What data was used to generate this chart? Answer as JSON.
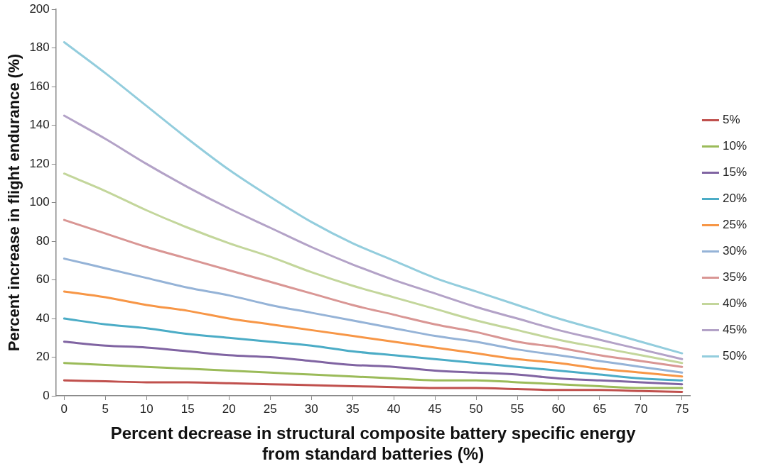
{
  "chart_data": {
    "type": "line",
    "xlabel": "Percent decrease in structural composite battery specific energy from standard batteries (%)",
    "ylabel": "Percent increase in flight endurance (%)",
    "x": [
      0,
      5,
      10,
      15,
      20,
      25,
      30,
      35,
      40,
      45,
      50,
      55,
      60,
      65,
      70,
      75
    ],
    "series": [
      {
        "name": "5%",
        "color": "#c0504d",
        "values": [
          8,
          7.5,
          7,
          7,
          6.5,
          6,
          5.5,
          5,
          4.5,
          4,
          4,
          3.5,
          3,
          3,
          2.5,
          2
        ]
      },
      {
        "name": "10%",
        "color": "#9bbb59",
        "values": [
          17,
          16,
          15,
          14,
          13,
          12,
          11,
          10,
          9,
          8,
          8,
          7,
          6,
          5,
          4,
          4
        ]
      },
      {
        "name": "15%",
        "color": "#8064a2",
        "values": [
          28,
          26,
          25,
          23,
          21,
          20,
          18,
          16,
          15,
          13,
          12,
          11,
          9,
          8,
          7,
          6
        ]
      },
      {
        "name": "20%",
        "color": "#4bacc6",
        "values": [
          40,
          37,
          35,
          32,
          30,
          28,
          26,
          23,
          21,
          19,
          17,
          15,
          13,
          11,
          9,
          8
        ]
      },
      {
        "name": "25%",
        "color": "#f79646",
        "values": [
          54,
          51,
          47,
          44,
          40,
          37,
          34,
          31,
          28,
          25,
          22,
          19,
          17,
          14,
          12,
          10
        ]
      },
      {
        "name": "30%",
        "color": "#95b3d7",
        "values": [
          71,
          66,
          61,
          56,
          52,
          47,
          43,
          39,
          35,
          31,
          28,
          24,
          21,
          18,
          15,
          12
        ]
      },
      {
        "name": "35%",
        "color": "#d99694",
        "values": [
          91,
          84,
          77,
          71,
          65,
          59,
          53,
          47,
          42,
          37,
          33,
          28,
          25,
          21,
          18,
          15
        ]
      },
      {
        "name": "40%",
        "color": "#c3d69b",
        "values": [
          115,
          106,
          96,
          87,
          79,
          72,
          64,
          57,
          51,
          45,
          39,
          34,
          29,
          25,
          21,
          17
        ]
      },
      {
        "name": "45%",
        "color": "#b3a2c7",
        "values": [
          145,
          133,
          120,
          108,
          97,
          87,
          77,
          68,
          60,
          53,
          46,
          40,
          34,
          29,
          24,
          19
        ]
      },
      {
        "name": "50%",
        "color": "#93cddd",
        "values": [
          183,
          167,
          150,
          133,
          117,
          103,
          90,
          79,
          70,
          61,
          54,
          47,
          40,
          34,
          28,
          22
        ]
      }
    ],
    "xlim": [
      -1,
      76
    ],
    "xticks": [
      0,
      5,
      10,
      15,
      20,
      25,
      30,
      35,
      40,
      45,
      50,
      55,
      60,
      65,
      70,
      75
    ],
    "ylim": [
      0,
      200
    ],
    "yticks": [
      0,
      20,
      40,
      60,
      80,
      100,
      120,
      140,
      160,
      180,
      200
    ],
    "grid": false,
    "legend": "right",
    "marker": "none",
    "line_style": "solid"
  }
}
